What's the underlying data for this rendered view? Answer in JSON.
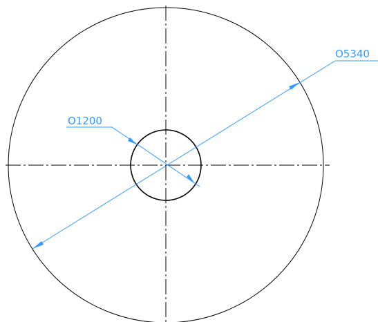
{
  "dimensions": {
    "small_circle": {
      "label": "O1200",
      "value": 1200
    },
    "large_circle": {
      "label": "O5340",
      "value": 5340
    }
  },
  "colors": {
    "geometry": "#000000",
    "centerline": "#000000",
    "dimension": "#3399ff"
  }
}
